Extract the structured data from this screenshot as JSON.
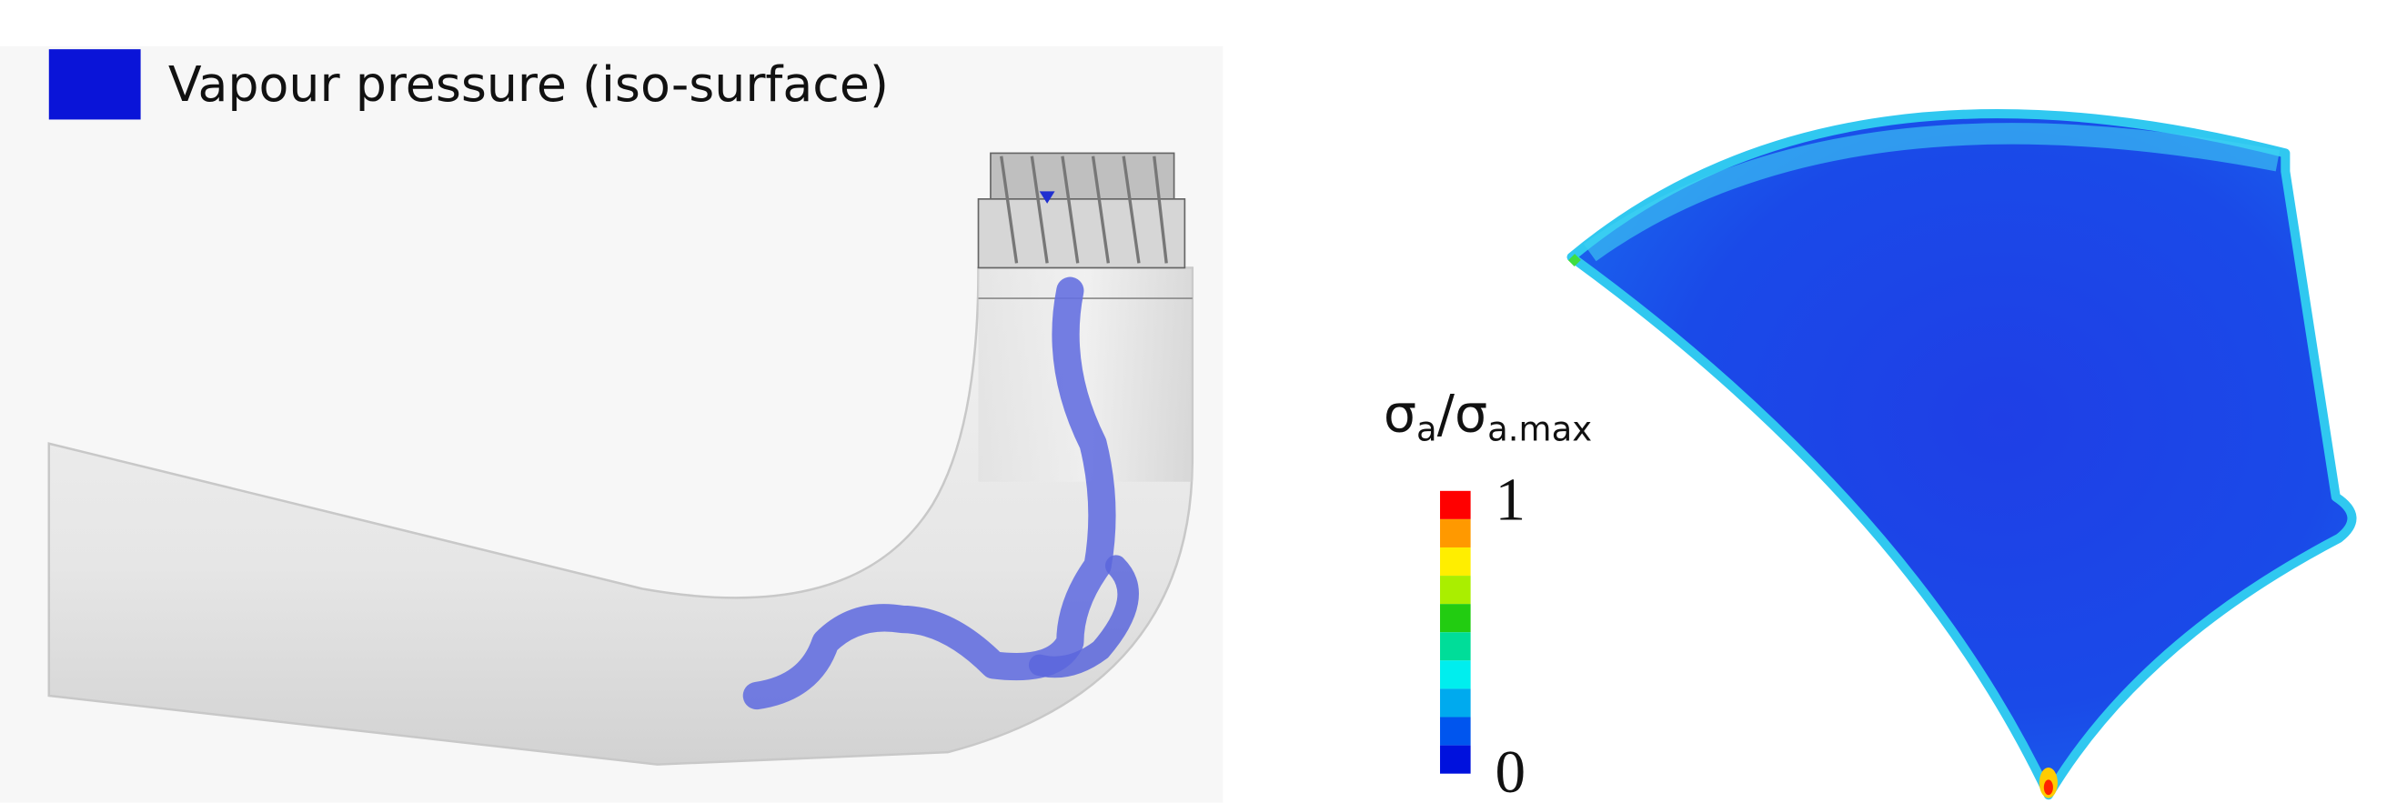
{
  "legend": {
    "label": "Vapour pressure (iso-surface)"
  },
  "colorbar": {
    "title": {
      "sigma": "σ",
      "sub1": "a",
      "slash_sigma": "/σ",
      "sub2": "a.max"
    },
    "max": 1,
    "min": 0
  }
}
